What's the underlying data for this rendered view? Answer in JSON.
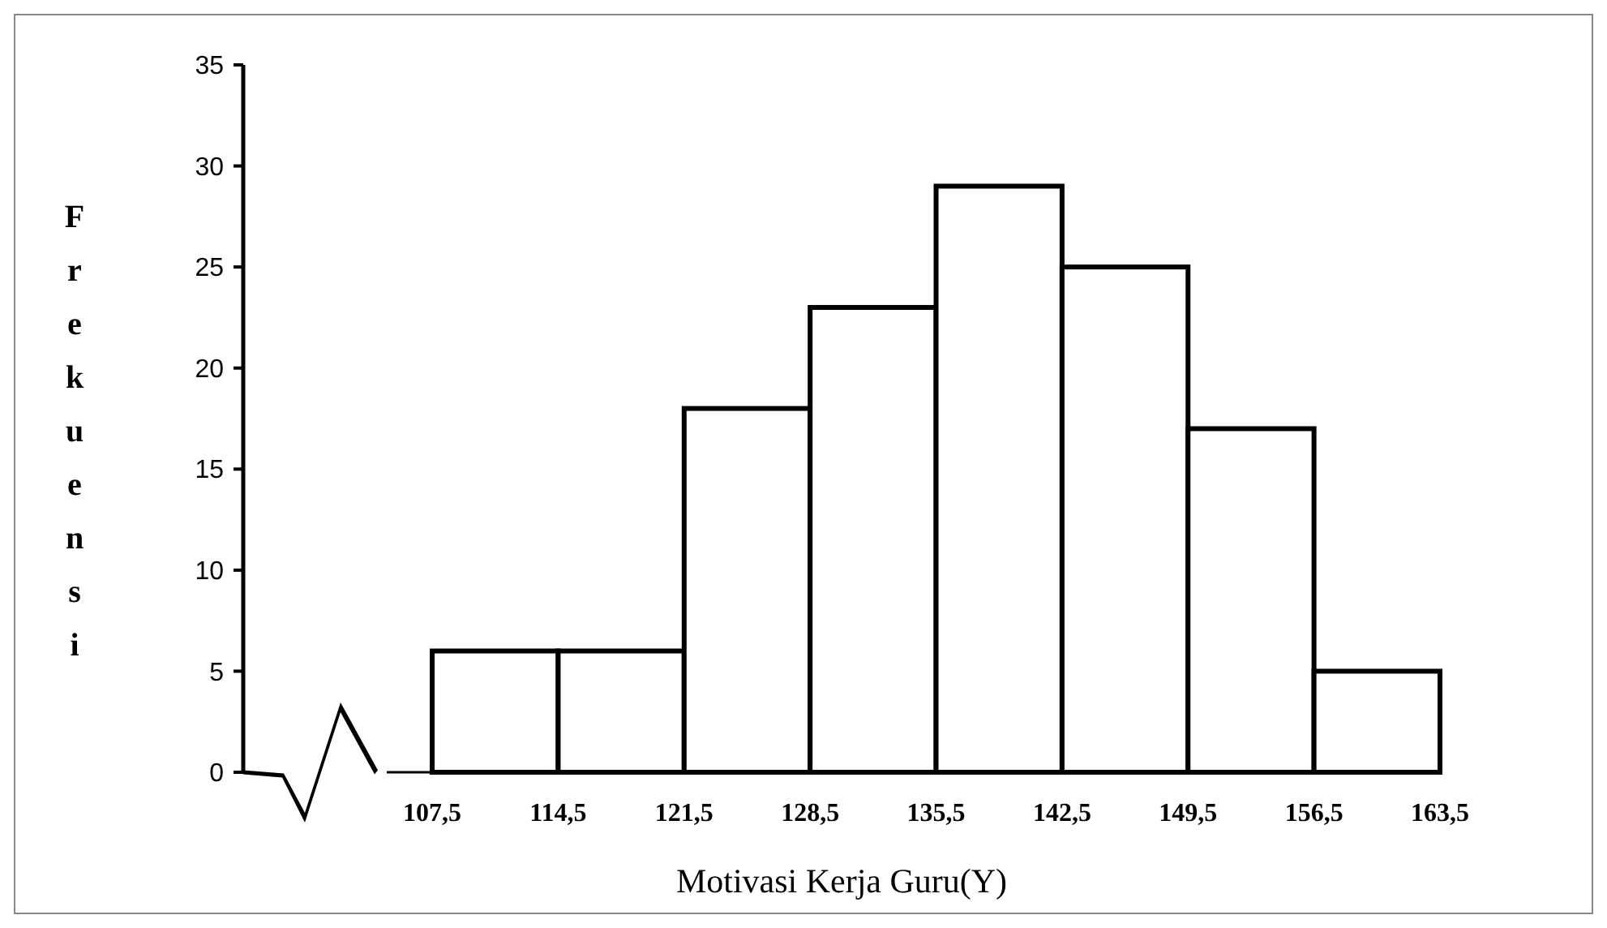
{
  "chart_data": {
    "type": "histogram",
    "xlabel": "Motivasi Kerja Guru(Y)",
    "ylabel": "Frekuensi",
    "bins": [
      107.5,
      114.5,
      121.5,
      128.5,
      135.5,
      142.5,
      149.5,
      156.5,
      163.5
    ],
    "values": [
      6,
      6,
      18,
      23,
      29,
      25,
      17,
      5
    ],
    "color": "#ffffff",
    "xlim": [
      97,
      163.5
    ],
    "xticks": [
      {
        "value": 107.5,
        "label": "107,5"
      },
      {
        "value": 114.5,
        "label": "114,5"
      },
      {
        "value": 121.5,
        "label": "121,5"
      },
      {
        "value": 128.5,
        "label": "128,5"
      },
      {
        "value": 135.5,
        "label": "135,5"
      },
      {
        "value": 142.5,
        "label": "142,5"
      },
      {
        "value": 149.5,
        "label": "149,5"
      },
      {
        "value": 156.5,
        "label": "156,5"
      },
      {
        "value": 163.5,
        "label": "163,5"
      }
    ],
    "ylim": [
      0,
      35
    ],
    "yticks": [
      0,
      5,
      10,
      15,
      20,
      25,
      30,
      35
    ],
    "grid": false
  }
}
